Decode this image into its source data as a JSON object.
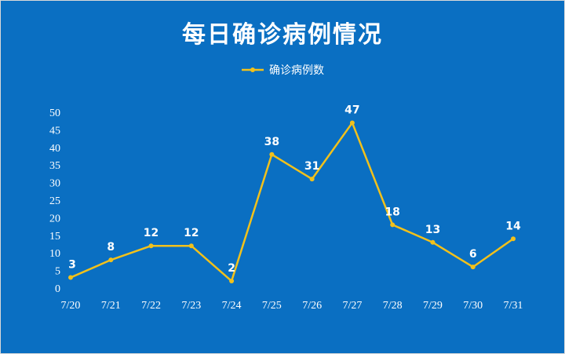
{
  "chart_data": {
    "type": "line",
    "title": "每日确诊病例情况",
    "categories": [
      "7/20",
      "7/21",
      "7/22",
      "7/23",
      "7/24",
      "7/25",
      "7/26",
      "7/27",
      "7/28",
      "7/29",
      "7/30",
      "7/31"
    ],
    "series": [
      {
        "name": "确诊病例数",
        "values": [
          3,
          8,
          12,
          12,
          2,
          38,
          31,
          47,
          18,
          13,
          6,
          14
        ]
      }
    ],
    "xlabel": "",
    "ylabel": "",
    "ylim": [
      0,
      50
    ],
    "yticks": [
      0,
      5,
      10,
      15,
      20,
      25,
      30,
      35,
      40,
      45,
      50
    ],
    "grid": false,
    "legend_position": "top",
    "data_labels": true,
    "colors": {
      "background": "#0a6fc2",
      "line": "#f2c11b",
      "text": "#ffffff"
    }
  }
}
